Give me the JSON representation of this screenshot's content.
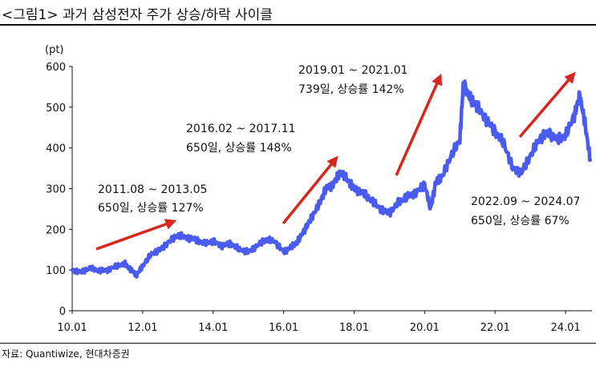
{
  "header": {
    "title": "<그림1> 과거  삼성전자 주가 상승/하락 사이클"
  },
  "footer": {
    "source": "자료: Quantiwize, 현대차증권"
  },
  "colors": {
    "series": "#4a5cf0",
    "arrow": "#d9261c"
  },
  "chart_data": {
    "type": "line",
    "ylabel": "(pt)",
    "ylim": [
      0,
      600
    ],
    "yticks": [
      "0",
      "100",
      "200",
      "300",
      "400",
      "500",
      "600"
    ],
    "xticks": [
      "10.01",
      "12.01",
      "14.01",
      "16.01",
      "18.01",
      "20.01",
      "22.01",
      "24.01"
    ],
    "grid": false,
    "series": [
      {
        "x": [
          2010.0,
          2010.25,
          2010.5,
          2010.75,
          2011.0,
          2011.25,
          2011.5,
          2011.67,
          2011.83,
          2012.0,
          2012.25,
          2012.5,
          2012.75,
          2013.0,
          2013.25,
          2013.5,
          2013.75,
          2014.0,
          2014.25,
          2014.5,
          2014.75,
          2015.0,
          2015.25,
          2015.5,
          2015.75,
          2016.0,
          2016.2,
          2016.4,
          2016.6,
          2016.8,
          2017.0,
          2017.2,
          2017.4,
          2017.6,
          2017.83,
          2018.0,
          2018.25,
          2018.5,
          2018.75,
          2019.0,
          2019.25,
          2019.5,
          2019.75,
          2020.0,
          2020.17,
          2020.33,
          2020.5,
          2020.75,
          2021.0,
          2021.1,
          2021.3,
          2021.5,
          2021.75,
          2022.0,
          2022.25,
          2022.5,
          2022.75,
          2023.0,
          2023.25,
          2023.5,
          2023.75,
          2024.0,
          2024.25,
          2024.4,
          2024.55,
          2024.7
        ],
        "values": [
          100,
          95,
          105,
          98,
          100,
          110,
          115,
          100,
          88,
          110,
          140,
          150,
          170,
          185,
          180,
          175,
          165,
          170,
          160,
          165,
          150,
          145,
          160,
          175,
          170,
          145,
          155,
          170,
          200,
          230,
          260,
          300,
          310,
          340,
          320,
          300,
          290,
          270,
          250,
          240,
          265,
          280,
          290,
          310,
          250,
          320,
          330,
          380,
          420,
          560,
          520,
          500,
          470,
          440,
          410,
          350,
          340,
          380,
          420,
          440,
          420,
          430,
          480,
          530,
          460,
          370
        ]
      }
    ],
    "annotations": [
      {
        "line1": "2011.08 ~ 2013.05",
        "line2": "650일, 상승률 127%"
      },
      {
        "line1": "2016.02 ~ 2017.11",
        "line2": "650일, 상승률 148%"
      },
      {
        "line1": "2019.01 ~ 2021.01",
        "line2": "739일, 상승률 142%"
      },
      {
        "line1": "2022.09 ~ 2024.07",
        "line2": "650일, 상승률 67%"
      }
    ]
  }
}
